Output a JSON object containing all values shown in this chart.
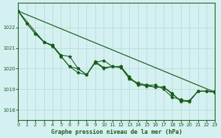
{
  "title": "Graphe pression niveau de la mer (hPa)",
  "background_color": "#d4f0f0",
  "grid_color": "#b0d8d8",
  "line_color": "#1a5c1a",
  "xlim": [
    0,
    23
  ],
  "ylim": [
    1017.5,
    1023.2
  ],
  "yticks": [
    1018,
    1019,
    1020,
    1021,
    1022
  ],
  "xticks": [
    0,
    1,
    2,
    3,
    4,
    5,
    6,
    7,
    8,
    9,
    10,
    11,
    12,
    13,
    14,
    15,
    16,
    17,
    18,
    19,
    20,
    21,
    22,
    23
  ],
  "series1": {
    "x": [
      0,
      1,
      2,
      3,
      4,
      5,
      6,
      7,
      8,
      9,
      10,
      11,
      12,
      13,
      14,
      15,
      16,
      17,
      18,
      19,
      20,
      21,
      22,
      23
    ],
    "y": [
      1022.8,
      1022.2,
      1021.7,
      1021.3,
      1021.1,
      1020.6,
      1020.1,
      1019.8,
      1019.7,
      1020.3,
      1020.4,
      1020.1,
      1020.1,
      1019.6,
      1019.2,
      1019.2,
      1019.1,
      1019.1,
      1018.8,
      1018.4,
      1018.4,
      1018.9,
      1018.9,
      1018.9
    ]
  },
  "series2": {
    "x": [
      0,
      3,
      4,
      5,
      6,
      7,
      8,
      9,
      10,
      11,
      12,
      13,
      14,
      15,
      16,
      17,
      18,
      19,
      20,
      21,
      22,
      23
    ],
    "y": [
      1022.8,
      1021.3,
      1021.1,
      1020.6,
      1020.1,
      1020.0,
      1019.7,
      1020.3,
      1020.0,
      1020.1,
      1020.1,
      1019.5,
      1019.3,
      1019.2,
      1019.2,
      1019.0,
      1018.6,
      1018.5,
      1018.4,
      1018.9,
      1018.9,
      1018.85
    ]
  },
  "series3_linear": {
    "x": [
      0,
      23
    ],
    "y": [
      1022.8,
      1018.85
    ]
  },
  "series4": {
    "x": [
      0,
      1,
      2,
      3,
      4,
      5,
      6,
      7,
      8,
      9,
      10,
      11,
      12,
      13,
      14,
      15,
      16,
      17,
      18,
      19,
      20,
      21,
      22,
      23
    ],
    "y": [
      1022.8,
      1022.2,
      1021.7,
      1021.3,
      1021.15,
      1020.65,
      1020.6,
      1020.0,
      1019.7,
      1020.35,
      1020.05,
      1020.1,
      1020.05,
      1019.5,
      1019.25,
      1019.15,
      1019.1,
      1019.1,
      1018.75,
      1018.45,
      1018.45,
      1018.9,
      1018.9,
      1018.85
    ]
  }
}
